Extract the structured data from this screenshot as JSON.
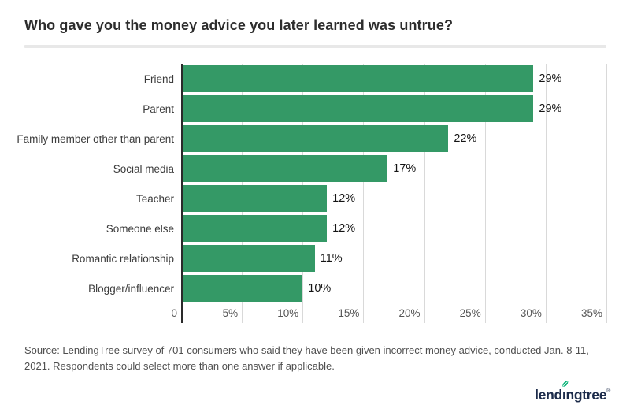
{
  "header": {
    "title": "Who gave you the money advice you later learned was untrue?"
  },
  "chart_data": {
    "type": "bar",
    "orientation": "horizontal",
    "title": "Who gave you the money advice you later learned was untrue?",
    "categories": [
      "Friend",
      "Parent",
      "Family member other than parent",
      "Social media",
      "Teacher",
      "Someone else",
      "Romantic relationship",
      "Blogger/influencer"
    ],
    "values": [
      29,
      29,
      22,
      17,
      12,
      12,
      11,
      10
    ],
    "value_labels": [
      "29%",
      "29%",
      "22%",
      "17%",
      "12%",
      "12%",
      "11%",
      "10%"
    ],
    "xlabel": "",
    "ylabel": "",
    "xlim": [
      0,
      35
    ],
    "x_ticks": [
      {
        "value": 0,
        "label": "0"
      },
      {
        "value": 5,
        "label": "5%"
      },
      {
        "value": 10,
        "label": "10%"
      },
      {
        "value": 15,
        "label": "15%"
      },
      {
        "value": 20,
        "label": "20%"
      },
      {
        "value": 25,
        "label": "25%"
      },
      {
        "value": 30,
        "label": "30%"
      },
      {
        "value": 35,
        "label": "35%"
      }
    ],
    "grid": true,
    "legend_position": "none",
    "bar_color": "#349966"
  },
  "footer": {
    "source_text": "Source: LendingTree survey of 701 consumers who said they have been given incorrect money advice, conducted Jan. 8-11, 2021. Respondents could select more than one answer if applicable.",
    "source_lines": [
      "Source: LendingTree survey of 701 consumers who said they have been given incorrect money advice, conducted Jan. 8-11, 2021.",
      "Respondents could select more than one answer if applicable."
    ]
  },
  "logo": {
    "brand": "lendingtree",
    "part_before_i": "lend",
    "part_i": "ı",
    "part_after_i": "ngtree",
    "registered": "®",
    "leaf_color": "#00b173",
    "text_color": "#1c2b4a"
  },
  "colors": {
    "bar": "#349966",
    "axis_line": "#2a2a2a",
    "gridline": "#d9d9d9",
    "divider": "#e8e8e8",
    "title_text": "#2d2d2d",
    "background": "#ffffff"
  }
}
